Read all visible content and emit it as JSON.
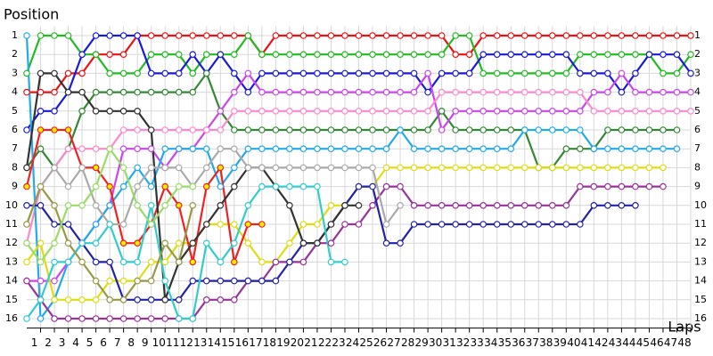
{
  "chart_data": {
    "type": "lap-chart",
    "y_title": "Position",
    "x_title": "Laps",
    "x": [
      0,
      1,
      2,
      3,
      4,
      5,
      6,
      7,
      8,
      9,
      10,
      11,
      12,
      13,
      14,
      15,
      16,
      17,
      18,
      19,
      20,
      21,
      22,
      23,
      24,
      25,
      26,
      27,
      28,
      29,
      30,
      31,
      32,
      33,
      34,
      35,
      36,
      37,
      38,
      39,
      40,
      41,
      42,
      43,
      44,
      45,
      46,
      47,
      48
    ],
    "xlim": [
      0,
      48
    ],
    "xticks": [
      1,
      2,
      3,
      4,
      5,
      6,
      7,
      8,
      9,
      10,
      11,
      12,
      13,
      14,
      15,
      16,
      17,
      18,
      19,
      20,
      21,
      22,
      23,
      24,
      25,
      26,
      27,
      28,
      29,
      30,
      31,
      32,
      33,
      34,
      35,
      36,
      37,
      38,
      39,
      40,
      41,
      42,
      43,
      44,
      45,
      46,
      47,
      48
    ],
    "ylim": [
      16.5,
      0.5
    ],
    "yticks": [
      1,
      2,
      3,
      4,
      5,
      6,
      7,
      8,
      9,
      10,
      11,
      12,
      13,
      14,
      15,
      16
    ],
    "grid": true,
    "marker_fill": "#ffffff",
    "series": [
      {
        "color": "#ee1111",
        "values": [
          4,
          4,
          4,
          3,
          3,
          2,
          2,
          2,
          1,
          1,
          1,
          1,
          1,
          1,
          1,
          1,
          1,
          2,
          1,
          1,
          1,
          1,
          1,
          1,
          1,
          1,
          1,
          1,
          1,
          1,
          1,
          2,
          2,
          1,
          1,
          1,
          1,
          1,
          1,
          1,
          1,
          1,
          1,
          1,
          1,
          1,
          1,
          1,
          1
        ]
      },
      {
        "color": "#22bb22",
        "values": [
          3,
          1,
          1,
          1,
          2,
          2,
          3,
          3,
          3,
          2,
          2,
          2,
          3,
          2,
          2,
          2,
          1,
          2,
          2,
          2,
          2,
          2,
          2,
          2,
          2,
          2,
          2,
          2,
          2,
          2,
          2,
          1,
          1,
          3,
          3,
          3,
          3,
          3,
          3,
          3,
          2,
          2,
          2,
          2,
          2,
          2,
          3,
          3,
          2
        ]
      },
      {
        "color": "#1a1add",
        "values": [
          6,
          5,
          5,
          4,
          2,
          1,
          1,
          1,
          1,
          3,
          3,
          3,
          2,
          3,
          2,
          3,
          4,
          3,
          3,
          3,
          3,
          3,
          3,
          3,
          3,
          3,
          3,
          3,
          3,
          4,
          3,
          3,
          3,
          2,
          2,
          2,
          2,
          2,
          2,
          2,
          3,
          3,
          3,
          4,
          3,
          2,
          2,
          2,
          3
        ]
      },
      {
        "color": "#338833",
        "values": [
          8,
          7,
          8,
          7,
          5,
          4,
          4,
          4,
          4,
          4,
          4,
          4,
          4,
          3,
          5,
          6,
          6,
          6,
          6,
          6,
          6,
          6,
          6,
          6,
          6,
          6,
          6,
          6,
          6,
          6,
          5,
          6,
          6,
          6,
          6,
          6,
          6,
          8,
          8,
          7,
          7,
          7,
          6,
          6,
          6,
          6,
          6,
          6,
          null
        ]
      },
      {
        "color": "#cc44ee",
        "values": [
          14,
          14,
          14,
          13,
          12,
          11,
          10,
          7,
          7,
          7,
          8,
          7,
          7,
          6,
          5,
          4,
          3,
          4,
          4,
          4,
          4,
          4,
          4,
          4,
          4,
          4,
          4,
          4,
          4,
          3,
          6,
          5,
          5,
          5,
          5,
          5,
          5,
          5,
          5,
          5,
          5,
          4,
          4,
          3,
          4,
          4,
          4,
          4,
          4
        ]
      },
      {
        "color": "#ff88cc",
        "values": [
          12,
          9,
          8,
          7,
          7,
          7,
          7,
          6,
          6,
          6,
          6,
          6,
          6,
          6,
          6,
          5,
          5,
          5,
          5,
          5,
          5,
          5,
          5,
          5,
          5,
          5,
          5,
          5,
          5,
          5,
          4,
          4,
          4,
          4,
          4,
          4,
          4,
          4,
          4,
          4,
          4,
          5,
          5,
          5,
          5,
          5,
          5,
          5,
          5
        ]
      },
      {
        "color": "#22aaee",
        "values": [
          1,
          16,
          15,
          13,
          12,
          11,
          10,
          9,
          8,
          9,
          7,
          7,
          7,
          7,
          9,
          8,
          7,
          7,
          7,
          7,
          7,
          7,
          7,
          7,
          7,
          7,
          7,
          6,
          7,
          7,
          7,
          7,
          7,
          7,
          7,
          7,
          6,
          6,
          6,
          6,
          6,
          7,
          7,
          7,
          7,
          7,
          7,
          7,
          null
        ]
      },
      {
        "color": "#dddd11",
        "values": [
          13,
          12,
          15,
          15,
          15,
          15,
          14,
          14,
          14,
          13,
          13,
          12,
          12,
          11,
          11,
          11,
          12,
          13,
          13,
          12,
          11,
          11,
          10,
          10,
          9,
          9,
          8,
          8,
          8,
          8,
          8,
          8,
          8,
          8,
          8,
          8,
          8,
          8,
          8,
          8,
          8,
          8,
          8,
          8,
          8,
          8,
          8,
          null,
          null
        ]
      },
      {
        "color": "#993399",
        "values": [
          14,
          15,
          16,
          16,
          16,
          16,
          16,
          16,
          16,
          16,
          16,
          16,
          16,
          15,
          15,
          15,
          14,
          14,
          13,
          13,
          13,
          12,
          12,
          11,
          11,
          10,
          9,
          9,
          10,
          10,
          10,
          10,
          10,
          10,
          10,
          10,
          10,
          10,
          10,
          10,
          9,
          9,
          9,
          9,
          9,
          9,
          9,
          null,
          null
        ]
      },
      {
        "color": "#2222aa",
        "values": [
          10,
          10,
          11,
          11,
          12,
          13,
          13,
          15,
          15,
          15,
          15,
          15,
          14,
          14,
          14,
          14,
          14,
          14,
          14,
          13,
          12,
          12,
          11,
          10,
          9,
          9,
          12,
          12,
          11,
          11,
          11,
          11,
          11,
          11,
          11,
          11,
          11,
          11,
          11,
          11,
          11,
          10,
          10,
          10,
          10,
          null,
          null,
          null,
          null
        ]
      },
      {
        "color": "#ee2222",
        "marker_fill": "#ffee00",
        "values": [
          9,
          6,
          6,
          6,
          8,
          8,
          9,
          12,
          12,
          11,
          9,
          10,
          13,
          9,
          8,
          13,
          11,
          11,
          null,
          null,
          null,
          null,
          null,
          null,
          null,
          null,
          null,
          null,
          null,
          null,
          null,
          null,
          null,
          null,
          null,
          null,
          null,
          null,
          null,
          null,
          null,
          null,
          null,
          null,
          null,
          null,
          null,
          null,
          null
        ]
      },
      {
        "color": "#333333",
        "values": [
          8,
          3,
          3,
          4,
          4,
          5,
          5,
          5,
          5,
          6,
          15,
          13,
          12,
          11,
          10,
          9,
          8,
          8,
          9,
          10,
          12,
          12,
          11,
          10,
          10,
          null,
          null,
          null,
          null,
          null,
          null,
          null,
          null,
          null,
          null,
          null,
          null,
          null,
          null,
          null,
          null,
          null,
          null,
          null,
          null,
          null,
          null,
          null,
          null
        ]
      },
      {
        "color": "#aaaaaa",
        "values": [
          11,
          9,
          8,
          9,
          8,
          10,
          11,
          11,
          9,
          8,
          8,
          8,
          9,
          8,
          7,
          7,
          8,
          8,
          8,
          8,
          8,
          8,
          8,
          8,
          8,
          8,
          11,
          10,
          null,
          null,
          null,
          null,
          null,
          null,
          null,
          null,
          null,
          null,
          null,
          null,
          null,
          null,
          null,
          null,
          null,
          null,
          null,
          null,
          null
        ]
      },
      {
        "color": "#33cccc",
        "values": [
          16,
          15,
          13,
          13,
          12,
          12,
          11,
          13,
          13,
          10,
          14,
          16,
          16,
          12,
          13,
          12,
          10,
          9,
          9,
          9,
          9,
          9,
          13,
          13,
          null,
          null,
          null,
          null,
          null,
          null,
          null,
          null,
          null,
          null,
          null,
          null,
          null,
          null,
          null,
          null,
          null,
          null,
          null,
          null,
          null,
          null,
          null,
          null,
          null
        ]
      },
      {
        "color": "#999944",
        "values": [
          11,
          9,
          10,
          12,
          13,
          14,
          15,
          15,
          14,
          14,
          12,
          13,
          10,
          null,
          null,
          null,
          null,
          null,
          null,
          null,
          null,
          null,
          null,
          null,
          null,
          null,
          null,
          null,
          null,
          null,
          null,
          null,
          null,
          null,
          null,
          null,
          null,
          null,
          null,
          null,
          null,
          null,
          null,
          null,
          null,
          null,
          null,
          null,
          null
        ]
      },
      {
        "color": "#99dd66",
        "values": [
          12,
          13,
          12,
          10,
          10,
          9,
          7,
          8,
          10,
          11,
          10,
          9,
          9,
          null,
          null,
          null,
          null,
          null,
          null,
          null,
          null,
          null,
          null,
          null,
          null,
          null,
          null,
          null,
          null,
          null,
          null,
          null,
          null,
          null,
          null,
          null,
          null,
          null,
          null,
          null,
          null,
          null,
          null,
          null,
          null,
          null,
          null,
          null,
          null
        ]
      }
    ]
  }
}
